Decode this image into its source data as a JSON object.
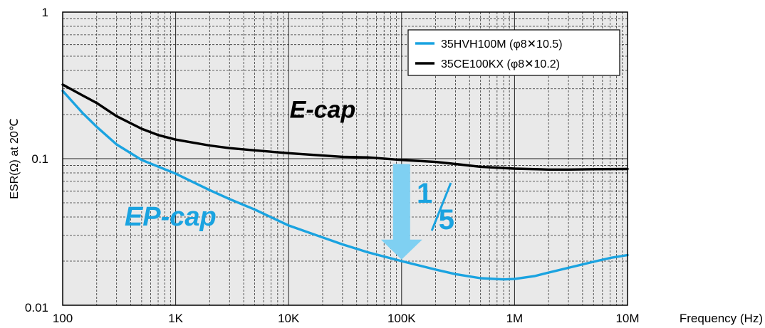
{
  "chart_data": {
    "type": "line",
    "xlabel": "Frequency (Hz)",
    "ylabel": "ESR(Ω) at 20℃",
    "x_scale": "log",
    "y_scale": "log",
    "xlim": [
      100,
      10000000
    ],
    "ylim": [
      0.01,
      1
    ],
    "x_ticks": [
      {
        "value": 100,
        "label": "100"
      },
      {
        "value": 1000,
        "label": "1K"
      },
      {
        "value": 10000,
        "label": "10K"
      },
      {
        "value": 100000,
        "label": "100K"
      },
      {
        "value": 1000000,
        "label": "1M"
      },
      {
        "value": 10000000,
        "label": "10M"
      }
    ],
    "y_ticks": [
      {
        "value": 0.01,
        "label": "0.01"
      },
      {
        "value": 0.1,
        "label": "0.1"
      },
      {
        "value": 1,
        "label": "1"
      }
    ],
    "grid": true,
    "legend_position": "top-right",
    "series": [
      {
        "name": "35HVH100M (φ8✕10.5)",
        "color": "#1aa3e0",
        "points": [
          [
            100,
            0.29
          ],
          [
            150,
            0.205
          ],
          [
            200,
            0.165
          ],
          [
            300,
            0.125
          ],
          [
            500,
            0.098
          ],
          [
            1000,
            0.079
          ],
          [
            2000,
            0.061
          ],
          [
            3000,
            0.053
          ],
          [
            5000,
            0.045
          ],
          [
            10000,
            0.035
          ],
          [
            20000,
            0.029
          ],
          [
            30000,
            0.026
          ],
          [
            50000,
            0.023
          ],
          [
            100000,
            0.02
          ],
          [
            200000,
            0.0175
          ],
          [
            300000,
            0.0163
          ],
          [
            500000,
            0.0153
          ],
          [
            800000,
            0.015
          ],
          [
            1000000,
            0.0151
          ],
          [
            1500000,
            0.0158
          ],
          [
            2000000,
            0.0167
          ],
          [
            3000000,
            0.018
          ],
          [
            5000000,
            0.0198
          ],
          [
            7000000,
            0.021
          ],
          [
            10000000,
            0.022
          ]
        ]
      },
      {
        "name": "35CE100KX (φ8✕10.2)",
        "color": "#000000",
        "points": [
          [
            100,
            0.32
          ],
          [
            150,
            0.27
          ],
          [
            200,
            0.24
          ],
          [
            300,
            0.195
          ],
          [
            500,
            0.16
          ],
          [
            700,
            0.145
          ],
          [
            1000,
            0.135
          ],
          [
            2000,
            0.123
          ],
          [
            3000,
            0.118
          ],
          [
            5000,
            0.114
          ],
          [
            10000,
            0.109
          ],
          [
            20000,
            0.105
          ],
          [
            30000,
            0.103
          ],
          [
            50000,
            0.102
          ],
          [
            100000,
            0.098
          ],
          [
            200000,
            0.095
          ],
          [
            300000,
            0.092
          ],
          [
            500000,
            0.088
          ],
          [
            1000000,
            0.0855
          ],
          [
            2000000,
            0.0843
          ],
          [
            3000000,
            0.0843
          ],
          [
            5000000,
            0.0848
          ],
          [
            10000000,
            0.085
          ]
        ]
      }
    ],
    "annotations": [
      {
        "text": "E-cap",
        "color": "#000000",
        "x": 20000,
        "y": 0.19
      },
      {
        "text": "EP-cap",
        "color": "#1aa3e0",
        "x": 900,
        "y": 0.035
      },
      {
        "text": "1",
        "color": "#1aa3e0",
        "x": 160000,
        "y": 0.05
      },
      {
        "text": "5",
        "color": "#1aa3e0",
        "x": 250000,
        "y": 0.033
      }
    ],
    "arrow": {
      "color": "#7fd0f2",
      "x": 100000,
      "y_from": 0.092,
      "y_to": 0.0205
    }
  }
}
